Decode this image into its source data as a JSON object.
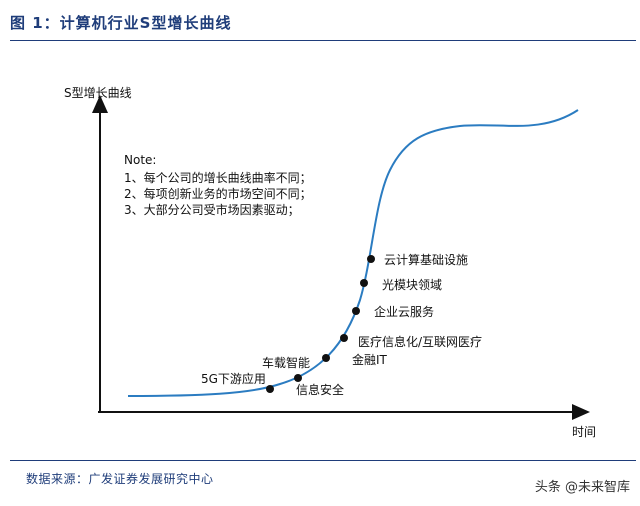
{
  "figure": {
    "title": "图 1：计算机行业S型增长曲线"
  },
  "diagram": {
    "y_axis_label": "S型增长曲线",
    "x_axis_label": "时间",
    "note_title": "Note:",
    "note_lines": [
      "1、每个公司的增长曲线曲率不同；",
      "2、每项创新业务的市场空间不同；",
      "3、大部分公司受市场因素驱动；"
    ],
    "points": [
      {
        "label": "5G下游应用"
      },
      {
        "label": "车载智能"
      },
      {
        "label": "信息安全"
      },
      {
        "label": "金融IT"
      },
      {
        "label": "医疗信息化/互联网医疗"
      },
      {
        "label": "企业云服务"
      },
      {
        "label": "光模块领域"
      },
      {
        "label": "云计算基础设施"
      }
    ],
    "colors": {
      "curve": "#2b7cc1",
      "axis": "#111111",
      "point": "#111111"
    }
  },
  "footer": {
    "source": "数据来源：广发证券发展研究中心",
    "watermark": "头条 @未来智库"
  }
}
